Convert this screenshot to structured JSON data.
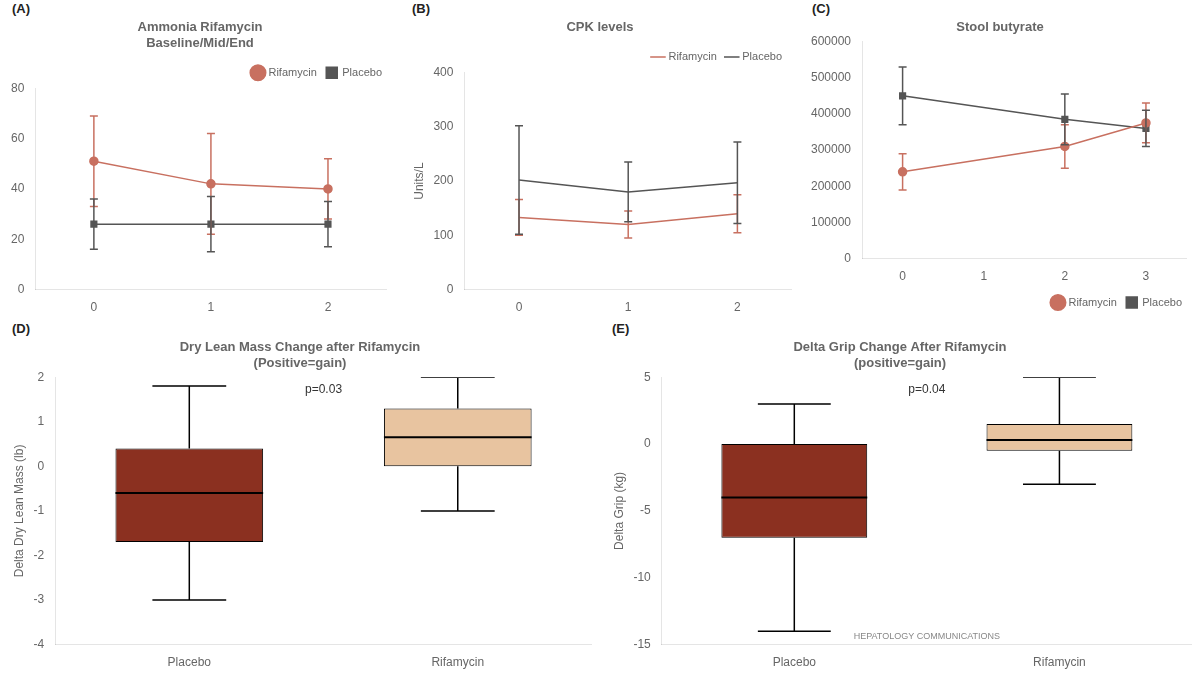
{
  "chart_data": [
    {
      "type": "line",
      "panel_label": "(A)",
      "title": "Ammonia Rifamycin\nBaseline/Mid/End",
      "x": [
        0,
        1,
        2
      ],
      "xlim": [
        -0.5,
        2.5
      ],
      "xticks": [
        0,
        1,
        2
      ],
      "ylim": [
        0,
        80
      ],
      "yticks": [
        0,
        20,
        40,
        60,
        80
      ],
      "grid": false,
      "legend": "upper right",
      "series": [
        {
          "name": "Rifamycin",
          "color": "#C87060",
          "marker": "circle",
          "values": [
            51,
            42,
            40
          ],
          "errors": [
            18,
            20,
            12
          ]
        },
        {
          "name": "Placebo",
          "color": "#555555",
          "marker": "square",
          "values": [
            26,
            26,
            26
          ],
          "errors": [
            10,
            11,
            9
          ]
        }
      ]
    },
    {
      "type": "line",
      "panel_label": "(B)",
      "title": "CPK levels",
      "y_label": "Units/L",
      "x": [
        0,
        1,
        2
      ],
      "xlim": [
        -0.5,
        2.5
      ],
      "xticks": [
        0,
        1,
        2
      ],
      "ylim": [
        0,
        400
      ],
      "yticks": [
        0,
        100,
        200,
        300,
        400
      ],
      "grid": false,
      "legend": "upper right",
      "series": [
        {
          "name": "Rifamycin",
          "color": "#C87060",
          "marker": "none",
          "values": [
            133,
            120,
            140
          ],
          "errors": [
            33,
            25,
            35
          ]
        },
        {
          "name": "Placebo",
          "color": "#555555",
          "marker": "none",
          "values": [
            202,
            180,
            197
          ],
          "errors": [
            100,
            55,
            75
          ]
        }
      ]
    },
    {
      "type": "line",
      "panel_label": "(C)",
      "title": "Stool butyrate",
      "x": [
        0,
        2,
        3
      ],
      "xlim": [
        -0.5,
        3.5
      ],
      "xticks": [
        0,
        1,
        2,
        3
      ],
      "ylim": [
        0,
        600000
      ],
      "yticks": [
        0,
        100000,
        200000,
        300000,
        400000,
        500000,
        600000
      ],
      "grid": false,
      "legend": "lower right",
      "series": [
        {
          "name": "Rifamycin",
          "color": "#C87060",
          "marker": "circle",
          "values": [
            240000,
            310000,
            375000
          ],
          "errors": [
            50000,
            60000,
            55000
          ]
        },
        {
          "name": "Placebo",
          "color": "#555555",
          "marker": "square",
          "values": [
            450000,
            385000,
            360000
          ],
          "errors": [
            80000,
            70000,
            50000
          ]
        }
      ]
    },
    {
      "type": "box",
      "panel_label": "(D)",
      "title": "Dry Lean Mass Change after Rifamycin\n(Positive=gain)",
      "y_label": "Delta Dry Lean Mass (lb)",
      "annotations": [
        "p=0.03"
      ],
      "categories": [
        "Placebo",
        "Rifamycin"
      ],
      "colors": [
        "#8B3020",
        "#E8C4A0"
      ],
      "median": [
        -0.6,
        0.65
      ],
      "q1": [
        -1.7,
        0.0
      ],
      "q3": [
        0.4,
        1.3
      ],
      "whisker_low": [
        -3.0,
        -1.0
      ],
      "whisker_high": [
        1.8,
        2.0
      ],
      "ylim": [
        -4,
        2
      ],
      "yticks": [
        -4,
        -3,
        -2,
        -1,
        0,
        1,
        2
      ],
      "grid": false
    },
    {
      "type": "box",
      "panel_label": "(E)",
      "title": "Delta Grip Change After Rifamycin\n(positive=gain)",
      "y_label": "Delta Grip (kg)",
      "annotations": [
        "p=0.04"
      ],
      "watermark": "HEPATOLOGY COMMUNICATIONS",
      "categories": [
        "Placebo",
        "Rifamycin"
      ],
      "colors": [
        "#8B3020",
        "#E8C4A0"
      ],
      "median": [
        -4.0,
        0.3
      ],
      "q1": [
        -7.0,
        -0.5
      ],
      "q3": [
        0.0,
        1.5
      ],
      "whisker_low": [
        -14.0,
        -3.0
      ],
      "whisker_high": [
        3.0,
        5.0
      ],
      "ylim": [
        -15,
        5
      ],
      "yticks": [
        -15,
        -10,
        -5,
        0,
        5
      ],
      "grid": false
    }
  ]
}
